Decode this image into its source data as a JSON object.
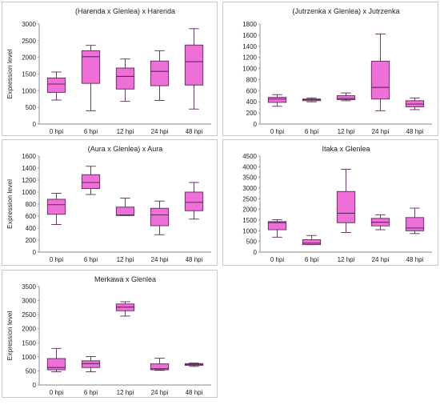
{
  "ylabel": "Expression level",
  "categories": [
    "0 hpi",
    "6 hpi",
    "12 hpi",
    "24 hpi",
    "48 hpi"
  ],
  "box_color": "#ee6fd8",
  "box_stroke": "#5a2a55",
  "chart_data": [
    {
      "type": "box",
      "title": "(Harenda x Glenlea) x Harenda",
      "ylabel": "Expression level",
      "categories": [
        "0 hpi",
        "6 hpi",
        "12 hpi",
        "24 hpi",
        "48 hpi"
      ],
      "ylim": [
        0,
        3000
      ],
      "ystep": 500,
      "ticks": [
        "0",
        "500",
        "1000",
        "1500",
        "2000",
        "2500",
        "3000"
      ],
      "boxes": [
        {
          "min": 720,
          "q1": 950,
          "median": 1200,
          "q3": 1380,
          "max": 1560
        },
        {
          "min": 400,
          "q1": 1220,
          "median": 2020,
          "q3": 2200,
          "max": 2360
        },
        {
          "min": 680,
          "q1": 1050,
          "median": 1430,
          "q3": 1680,
          "max": 1950
        },
        {
          "min": 710,
          "q1": 1150,
          "median": 1580,
          "q3": 1890,
          "max": 2200
        },
        {
          "min": 450,
          "q1": 1170,
          "median": 1870,
          "q3": 2370,
          "max": 2860
        }
      ]
    },
    {
      "type": "box",
      "title": "(Jutrzenka x Glenlea) x Jutrzenka",
      "ylabel": "",
      "categories": [
        "0 hpi",
        "6 hpi",
        "12 hpi",
        "24 hpi",
        "48 hpi"
      ],
      "ylim": [
        0,
        1800
      ],
      "ystep": 200,
      "ticks": [
        "0",
        "200",
        "400",
        "600",
        "800",
        "1000",
        "1200",
        "1400",
        "1600",
        "1800"
      ],
      "boxes": [
        {
          "min": 320,
          "q1": 390,
          "median": 450,
          "q3": 480,
          "max": 530
        },
        {
          "min": 400,
          "q1": 420,
          "median": 440,
          "q3": 450,
          "max": 470
        },
        {
          "min": 420,
          "q1": 440,
          "median": 460,
          "q3": 510,
          "max": 560
        },
        {
          "min": 240,
          "q1": 450,
          "median": 660,
          "q3": 1130,
          "max": 1620
        },
        {
          "min": 260,
          "q1": 310,
          "median": 360,
          "q3": 420,
          "max": 470
        }
      ]
    },
    {
      "type": "box",
      "title": "(Aura x Glenlea) x Aura",
      "ylabel": "Expression level",
      "categories": [
        "0 hpi",
        "6 hpi",
        "12 hpi",
        "24 hpi",
        "48 hpi"
      ],
      "ylim": [
        0,
        1600
      ],
      "ystep": 200,
      "ticks": [
        "0",
        "200",
        "400",
        "600",
        "800",
        "1000",
        "1200",
        "1400",
        "1600"
      ],
      "boxes": [
        {
          "min": 460,
          "q1": 630,
          "median": 790,
          "q3": 880,
          "max": 980
        },
        {
          "min": 960,
          "q1": 1060,
          "median": 1160,
          "q3": 1290,
          "max": 1430
        },
        {
          "min": 610,
          "q1": 610,
          "median": 620,
          "q3": 750,
          "max": 900
        },
        {
          "min": 290,
          "q1": 440,
          "median": 620,
          "q3": 730,
          "max": 850
        },
        {
          "min": 550,
          "q1": 690,
          "median": 830,
          "q3": 1000,
          "max": 1160
        }
      ]
    },
    {
      "type": "box",
      "title": "Itaka x Glenlea",
      "ylabel": "",
      "categories": [
        "0 hpi",
        "6 hpi",
        "12 hpi",
        "24 hpi",
        "48 hpi"
      ],
      "ylim": [
        0,
        4500
      ],
      "ystep": 500,
      "ticks": [
        "0",
        "500",
        "1000",
        "1500",
        "2000",
        "2500",
        "3000",
        "3500",
        "4000",
        "4500"
      ],
      "boxes": [
        {
          "min": 700,
          "q1": 1050,
          "median": 1380,
          "q3": 1430,
          "max": 1520
        },
        {
          "min": 350,
          "q1": 350,
          "median": 420,
          "q3": 580,
          "max": 780
        },
        {
          "min": 920,
          "q1": 1380,
          "median": 1820,
          "q3": 2840,
          "max": 3880
        },
        {
          "min": 1050,
          "q1": 1230,
          "median": 1400,
          "q3": 1580,
          "max": 1750
        },
        {
          "min": 870,
          "q1": 1000,
          "median": 1130,
          "q3": 1620,
          "max": 2060
        }
      ]
    },
    {
      "type": "box",
      "title": "Merkawa x Glenlea",
      "ylabel": "Expression level",
      "categories": [
        "0 hpi",
        "6 hpi",
        "12 hpi",
        "24 hpi",
        "48 hpi"
      ],
      "ylim": [
        0,
        3500
      ],
      "ystep": 500,
      "ticks": [
        "0",
        "500",
        "1000",
        "1500",
        "2000",
        "2500",
        "3000",
        "3500"
      ],
      "boxes": [
        {
          "min": 470,
          "q1": 540,
          "median": 620,
          "q3": 940,
          "max": 1300
        },
        {
          "min": 470,
          "q1": 620,
          "median": 760,
          "q3": 860,
          "max": 1010
        },
        {
          "min": 2450,
          "q1": 2640,
          "median": 2770,
          "q3": 2880,
          "max": 2960
        },
        {
          "min": 520,
          "q1": 540,
          "median": 580,
          "q3": 750,
          "max": 950
        },
        {
          "min": 660,
          "q1": 700,
          "median": 730,
          "q3": 760,
          "max": 780
        }
      ]
    }
  ]
}
